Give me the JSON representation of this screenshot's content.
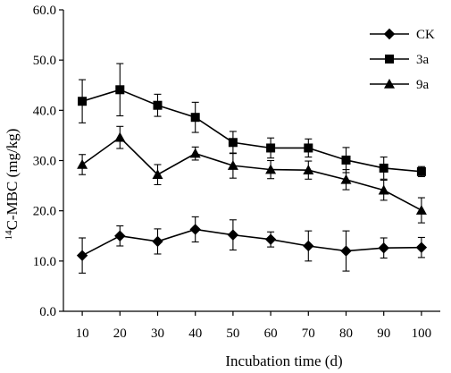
{
  "chart_data": {
    "type": "line",
    "xlabel": "Incubation time (d)",
    "ylabel_superscript": "14",
    "ylabel": "C-MBC (mg/kg)",
    "categories": [
      "10",
      "20",
      "30",
      "40",
      "50",
      "60",
      "70",
      "80",
      "90",
      "100"
    ],
    "x": [
      10,
      20,
      30,
      40,
      50,
      60,
      70,
      80,
      90,
      100
    ],
    "ylim": [
      0,
      60
    ],
    "yticks": [
      "0.0",
      "10.0",
      "20.0",
      "30.0",
      "40.0",
      "50.0",
      "60.0"
    ],
    "ytick_values": [
      0,
      10,
      20,
      30,
      40,
      50,
      60
    ],
    "grid": false,
    "legend_position": "top-right",
    "series": [
      {
        "name": "CK",
        "marker": "diamond",
        "values": [
          11.1,
          15.0,
          13.9,
          16.3,
          15.2,
          14.3,
          13.0,
          12.0,
          12.6,
          12.7
        ],
        "errors": [
          3.5,
          2.0,
          2.5,
          2.5,
          3.0,
          1.5,
          3.0,
          4.0,
          2.0,
          2.0
        ]
      },
      {
        "name": "3a",
        "marker": "square",
        "values": [
          41.8,
          44.1,
          41.0,
          38.6,
          33.6,
          32.5,
          32.5,
          30.1,
          28.5,
          27.8
        ],
        "errors": [
          4.3,
          5.2,
          2.2,
          3.0,
          2.2,
          2.0,
          1.8,
          2.5,
          2.2,
          1.0
        ]
      },
      {
        "name": "9a",
        "marker": "triangle",
        "values": [
          29.2,
          34.6,
          27.2,
          31.4,
          29.0,
          28.2,
          28.1,
          26.2,
          24.1,
          20.1
        ],
        "errors": [
          2.0,
          2.2,
          2.0,
          1.3,
          2.5,
          1.8,
          1.8,
          2.0,
          2.0,
          2.5
        ]
      }
    ],
    "colors": {
      "line": "#000000",
      "marker": "#000000",
      "axis": "#000000"
    }
  }
}
